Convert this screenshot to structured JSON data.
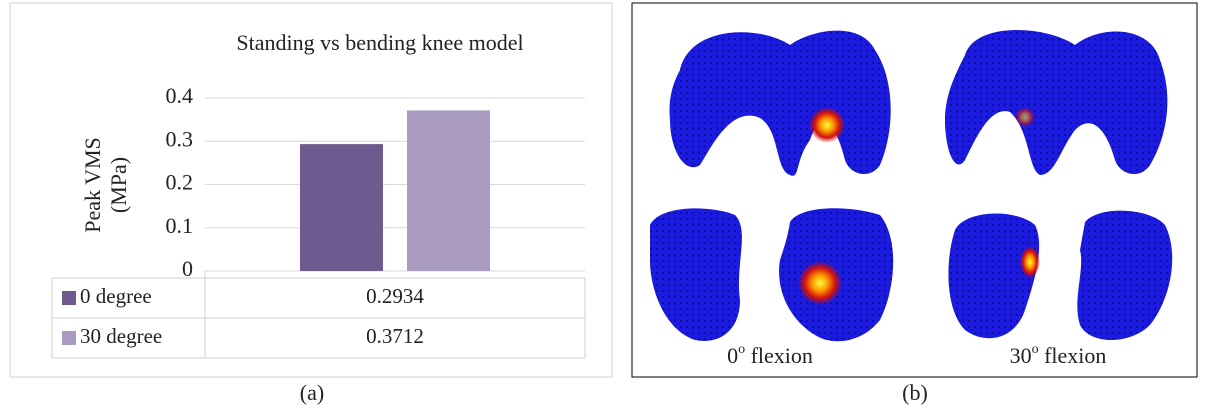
{
  "chart_data": {
    "type": "bar",
    "title": "Standing vs bending knee model",
    "ylabel_lines": [
      "Peak VMS",
      "(MPa)"
    ],
    "categories": [
      null
    ],
    "series": [
      {
        "name": "0 degree",
        "color": "#6f5a8f",
        "values": [
          0.2934
        ]
      },
      {
        "name": "30 degree",
        "color": "#a89bbf",
        "values": [
          0.3712
        ]
      }
    ],
    "ylim": [
      0,
      0.4
    ],
    "yticks": [
      0,
      0.1,
      0.2,
      0.3,
      0.4
    ],
    "grid": true,
    "data_table": true
  },
  "captions": [
    "(a)",
    "(b)"
  ],
  "panel_b": {
    "labels": [
      {
        "number": "0",
        "superscript": "o",
        "text": " flexion"
      },
      {
        "number": "30",
        "superscript": "o",
        "text": " flexion"
      }
    ]
  }
}
